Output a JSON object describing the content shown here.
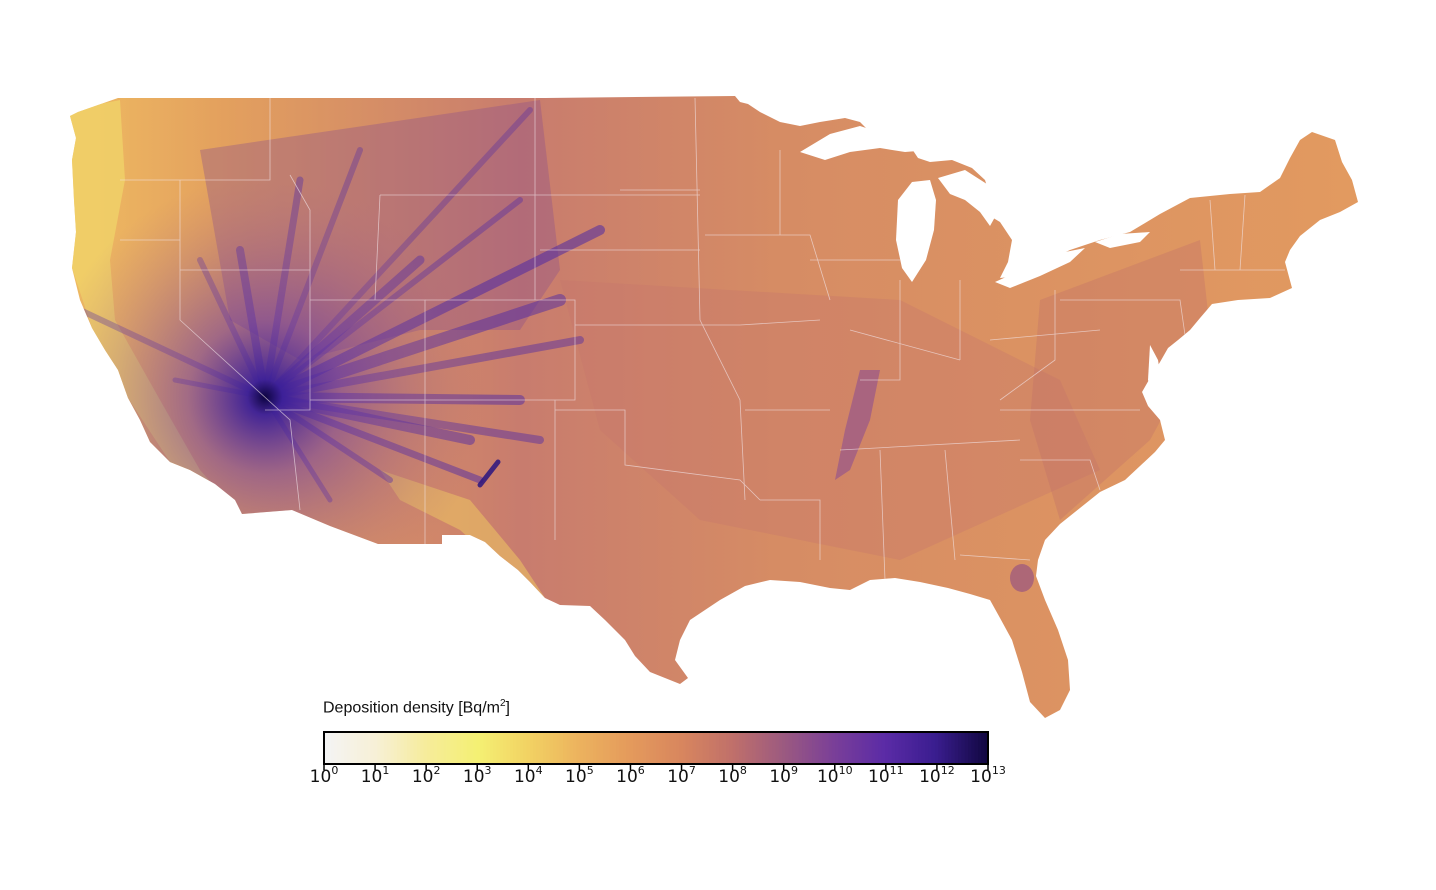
{
  "colorbar": {
    "title_text": "Deposition density [Bq/m",
    "title_sup": "2",
    "title_close": "]",
    "scale": "log",
    "base": "10",
    "exponents": [
      "0",
      "1",
      "2",
      "3",
      "4",
      "5",
      "6",
      "7",
      "8",
      "9",
      "10",
      "11",
      "12",
      "13"
    ],
    "colormap": [
      "#f4f4f4",
      "#f7f0d6",
      "#f6ec9a",
      "#f4f073",
      "#f2d263",
      "#ecb25e",
      "#e49a5c",
      "#d8865e",
      "#c0706a",
      "#9c5a80",
      "#7a3f98",
      "#5b2ba6",
      "#3a1d8f",
      "#120842"
    ]
  },
  "map": {
    "region": "Contiguous United States",
    "source_marker": "Nevada test site",
    "background_color": "#e29a60",
    "plume_color": "#4b2aa0",
    "low_color": "#f2dc6c"
  }
}
